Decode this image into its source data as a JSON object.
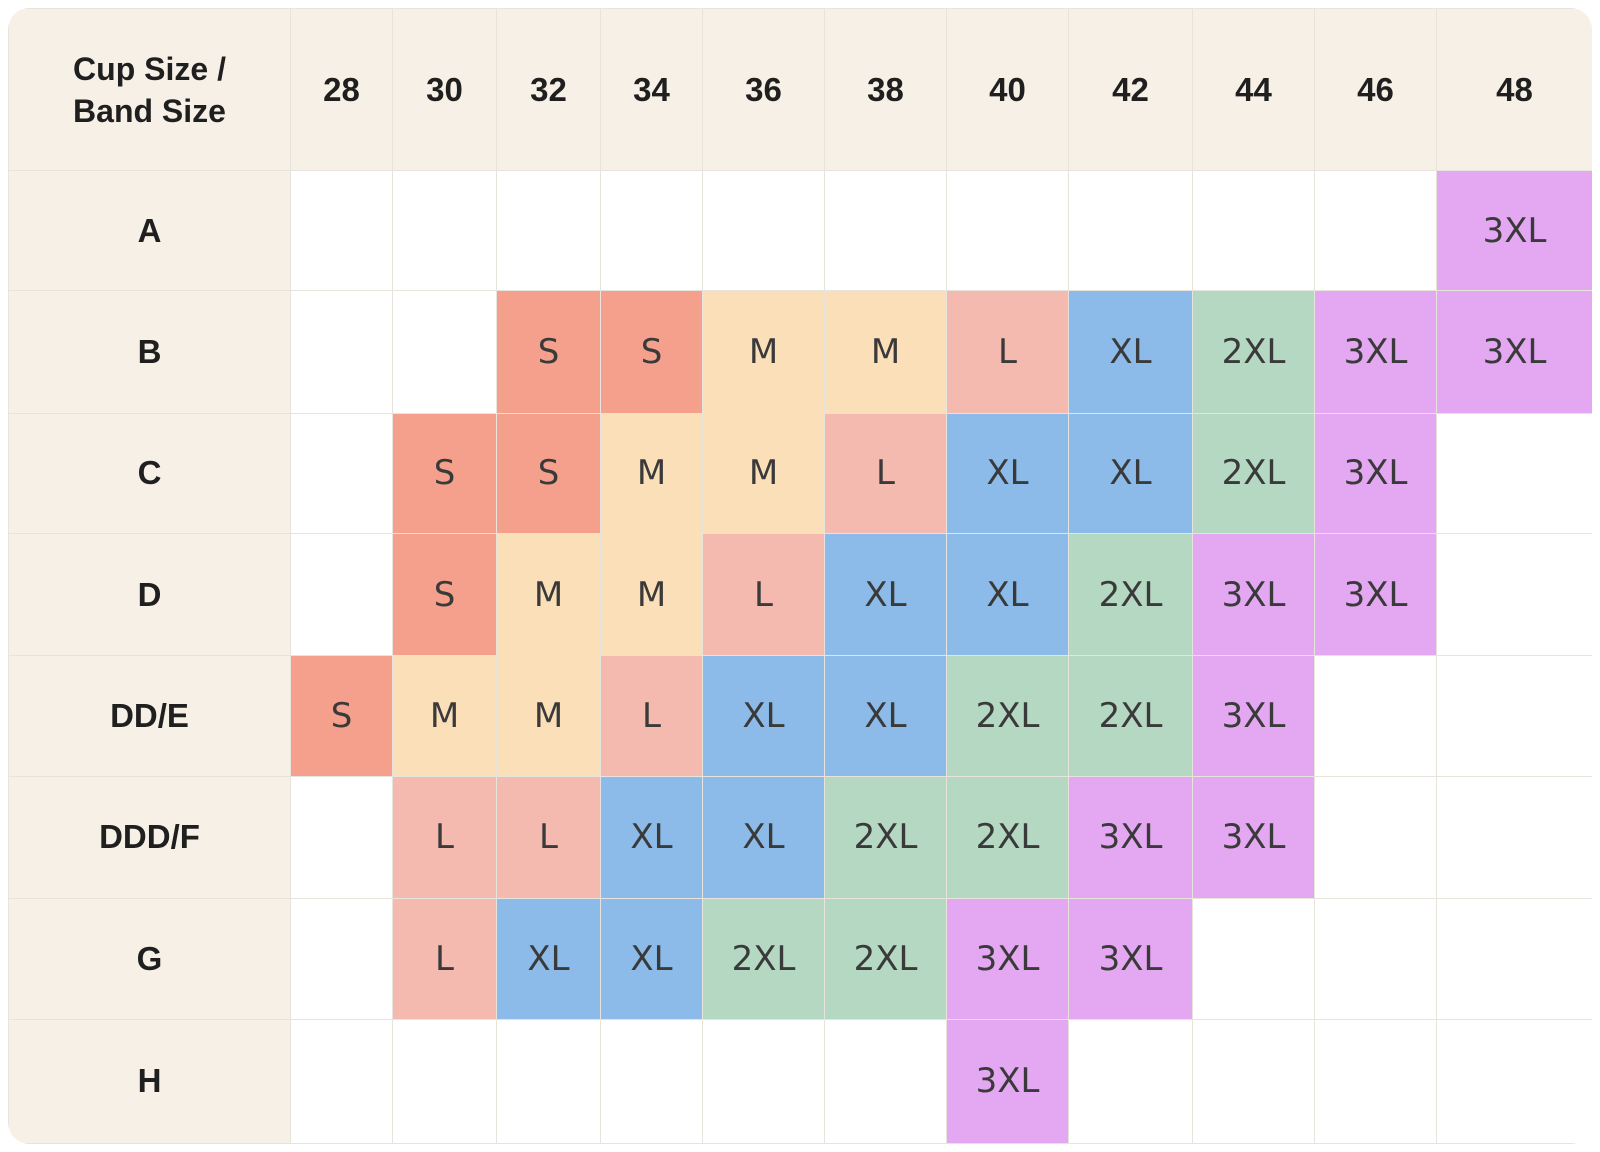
{
  "chart_data": {
    "type": "table",
    "corner_label": "Cup Size /\nBand Size",
    "band_sizes": [
      "28",
      "30",
      "32",
      "34",
      "36",
      "38",
      "40",
      "42",
      "44",
      "46",
      "48"
    ],
    "rows": [
      {
        "cup": "A",
        "sizes": [
          "",
          "",
          "",
          "",
          "",
          "",
          "",
          "",
          "",
          "",
          "3XL"
        ]
      },
      {
        "cup": "B",
        "sizes": [
          "",
          "",
          "S",
          "S",
          "M",
          "M",
          "L",
          "XL",
          "2XL",
          "3XL",
          "3XL"
        ]
      },
      {
        "cup": "C",
        "sizes": [
          "",
          "S",
          "S",
          "M",
          "M",
          "L",
          "XL",
          "XL",
          "2XL",
          "3XL",
          ""
        ]
      },
      {
        "cup": "D",
        "sizes": [
          "",
          "S",
          "M",
          "M",
          "L",
          "XL",
          "XL",
          "2XL",
          "3XL",
          "3XL",
          ""
        ]
      },
      {
        "cup": "DD/E",
        "sizes": [
          "S",
          "M",
          "M",
          "L",
          "XL",
          "XL",
          "2XL",
          "2XL",
          "3XL",
          "",
          ""
        ]
      },
      {
        "cup": "DDD/F",
        "sizes": [
          "",
          "L",
          "L",
          "XL",
          "XL",
          "2XL",
          "2XL",
          "3XL",
          "3XL",
          "",
          ""
        ]
      },
      {
        "cup": "G",
        "sizes": [
          "",
          "L",
          "XL",
          "XL",
          "2XL",
          "2XL",
          "3XL",
          "3XL",
          "",
          "",
          ""
        ]
      },
      {
        "cup": "H",
        "sizes": [
          "",
          "",
          "",
          "",
          "",
          "",
          "3XL",
          "",
          "",
          "",
          ""
        ]
      }
    ]
  },
  "colors": {
    "S": "#f4a08c",
    "M": "#fbdfb8",
    "L": "#f4bab0",
    "XL": "#8dbbe9",
    "2XL": "#b5d8c3",
    "3XL": "#e4a8f2",
    "empty": "#ffffff",
    "header_bg": "#f6f0e6",
    "grid_line": "#e7e3dd"
  }
}
